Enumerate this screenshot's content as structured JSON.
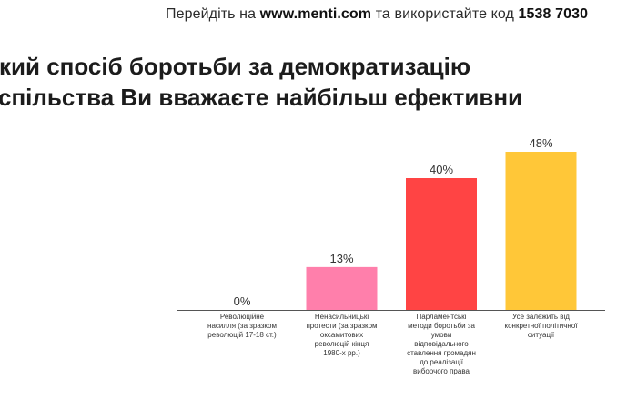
{
  "header": {
    "prefix": "Перейдіть на",
    "site": "www.menti.com",
    "middle": "та використайте код",
    "code": "1538 7030"
  },
  "question": {
    "line1": "кий спосіб боротьби за демократизацію",
    "line2": "спільства Ви вважаєте найбільш ефективни"
  },
  "chart_data": {
    "type": "bar",
    "title": "кий спосіб боротьби за демократизацію спільства Ви вважаєте найбільш ефективни",
    "categories": [
      "Революційне насилля (за зразком революцій 17-18 ст.)",
      "Ненасильницькі протести (за зразком оксамитових революцій кінця 1980-х рр.)",
      "Парламентські методи боротьби за умови відповідального ставлення громадян до реалізації виборчого права",
      "Усе залежить від конкретної політичної ситуації"
    ],
    "values": [
      0,
      13,
      40,
      48
    ],
    "value_labels": [
      "0%",
      "13%",
      "40%",
      "48%"
    ],
    "colors": [
      "#5a7bd6",
      "#ff7fab",
      "#ff4444",
      "#ffc738"
    ],
    "ylim": [
      0,
      48
    ],
    "xlabel": "",
    "ylabel": "",
    "grid": false,
    "legend": "none"
  }
}
